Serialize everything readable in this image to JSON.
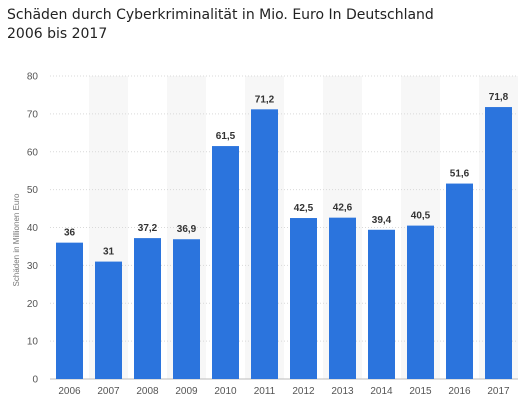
{
  "header": {
    "title_line1": "Schäden durch Cyberkriminalität in Mio. Euro In Deutschland",
    "title_line2": "2006 bis 2017"
  },
  "colors": {
    "bar": "#2b74dd",
    "band": "#f7f7f7",
    "grid": "#d9d9d9",
    "axis": "#bbbbbb"
  },
  "chart_data": {
    "type": "bar",
    "title": "Schäden durch Cyberkriminalität in Mio. Euro In Deutschland 2006 bis 2017",
    "ylabel": "Schäden in Millionen Euro",
    "xlabel": "",
    "categories": [
      "2006",
      "2007",
      "2008",
      "2009",
      "2010",
      "2011",
      "2012",
      "2013",
      "2014",
      "2015",
      "2016",
      "2017"
    ],
    "values": [
      36,
      31,
      37.2,
      36.9,
      61.5,
      71.2,
      42.5,
      42.6,
      39.4,
      40.5,
      51.6,
      71.8
    ],
    "value_labels": [
      "36",
      "31",
      "37,2",
      "36,9",
      "61,5",
      "71,2",
      "42,5",
      "42,6",
      "39,4",
      "40,5",
      "51,6",
      "71,8"
    ],
    "ylim": [
      0,
      80
    ],
    "yticks": [
      0,
      10,
      20,
      30,
      40,
      50,
      60,
      70,
      80
    ],
    "grid": true,
    "legend": "none"
  }
}
